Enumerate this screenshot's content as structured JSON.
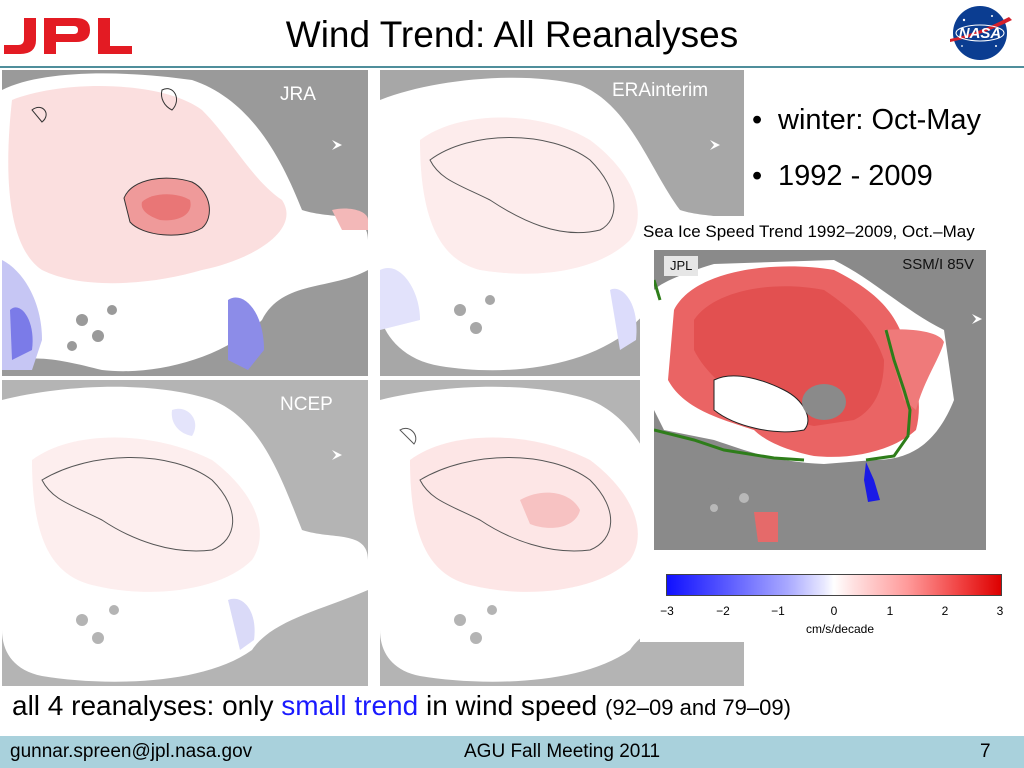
{
  "header": {
    "title": "Wind Trend: All Reanalyses",
    "left_logo_text": "JPL",
    "right_logo_text": "NASA"
  },
  "panels": {
    "jra_label": "JRA",
    "erainterim_label": "ERAinterim",
    "ncep_label": "NCEP",
    "fourth_label": ""
  },
  "bullets": [
    "winter: Oct-May",
    "1992 - 2009"
  ],
  "sea_ice": {
    "title": "Sea Ice Speed Trend 1992–2009, Oct.–May",
    "tag": "JPL",
    "sensor": "SSM/I 85V",
    "colorbar_ticks": [
      "−3",
      "−2",
      "−1",
      "0",
      "1",
      "2",
      "3"
    ],
    "colorbar_unit": "cm/s/decade",
    "colors": {
      "negative": "#1010ff",
      "zero": "#ffffff",
      "positive": "#dd0000",
      "ice_edge": "#2e7d1a"
    }
  },
  "caption": {
    "part1": "all 4 reanalyses: only ",
    "highlight": "small trend",
    "part2": " in wind speed ",
    "note": "(92–09 and 79–09)",
    "highlight_color": "#1a1aff"
  },
  "footer": {
    "email": "gunnar.spreen@jpl.nasa.gov",
    "event": "AGU Fall Meeting 2011",
    "page": "7",
    "background": "#a9d1dc"
  }
}
